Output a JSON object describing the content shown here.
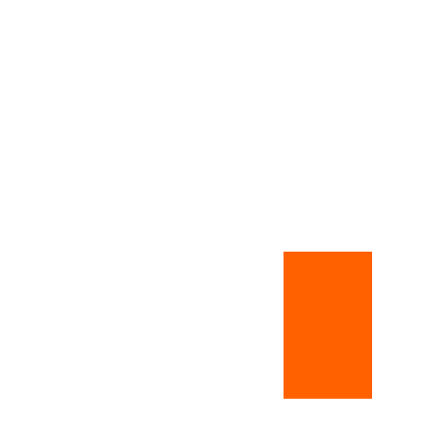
{
  "colors": {
    "background": "#ffffff",
    "block": "#ff6100"
  }
}
